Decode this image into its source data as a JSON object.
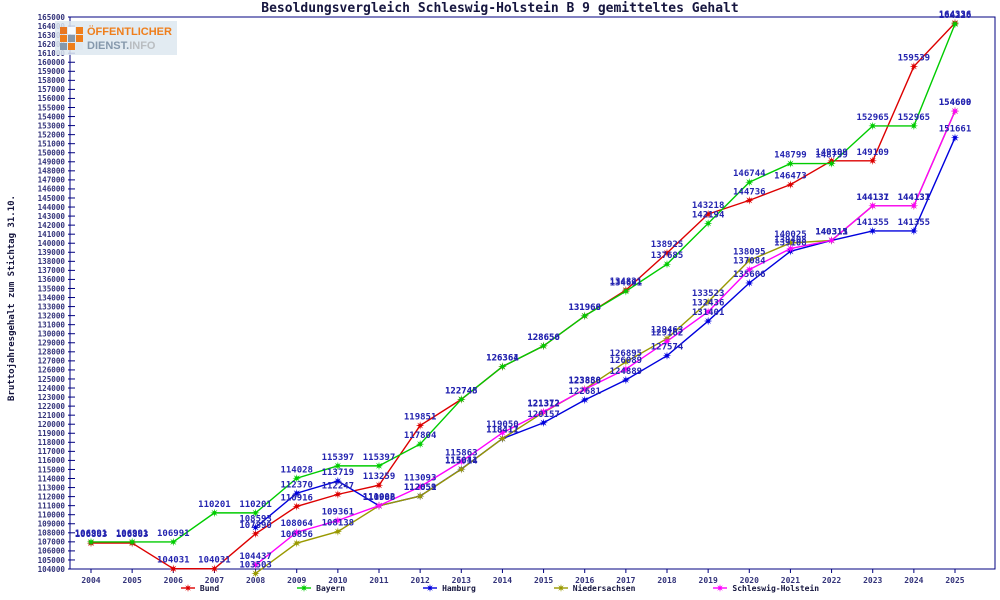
{
  "title": "Besoldungsvergleich Schleswig-Holstein B 9 gemitteltes Gehalt",
  "y_axis_title": "Bruttojahresgehalt zum Stichtag 31.10.",
  "logo": {
    "line1": "ÖFFENTLICHER",
    "line2_a": "DIENST.",
    "line2_b": "INFO"
  },
  "colors": {
    "axis": "#000080",
    "tick_text": "#33337a",
    "point_label_text": "#2525b0",
    "title_text": "#16163f"
  },
  "chart_data": {
    "type": "line",
    "x": [
      2004,
      2005,
      2006,
      2007,
      2008,
      2009,
      2010,
      2011,
      2012,
      2013,
      2014,
      2015,
      2016,
      2017,
      2018,
      2019,
      2020,
      2021,
      2022,
      2023,
      2024,
      2025
    ],
    "ylim": [
      104000,
      165000
    ],
    "ytick_step": 1000,
    "grid": false,
    "legend_position": "bottom",
    "title": "Besoldungsvergleich Schleswig-Holstein B 9 gemitteltes Gehalt",
    "xlabel": "",
    "ylabel": "Bruttojahresgehalt zum Stichtag 31.10.",
    "point_labels": true,
    "series": [
      {
        "name": "Bund",
        "color": "#dd0000",
        "values": [
          106863,
          106863,
          104031,
          104031,
          107890,
          110916,
          112247,
          113259,
          119851,
          122745,
          126361,
          128650,
          131966,
          134821,
          138925,
          143218,
          144736,
          146473,
          149109,
          149109,
          159539,
          164336
        ]
      },
      {
        "name": "Bayern",
        "color": "#00cc00",
        "values": [
          106991,
          106991,
          106991,
          110201,
          110201,
          114028,
          115397,
          115397,
          117804,
          122748,
          126364,
          128656,
          131968,
          134691,
          137685,
          142194,
          146744,
          148799,
          148799,
          152965,
          152965,
          164226
        ]
      },
      {
        "name": "Hamburg",
        "color": "#0000dd",
        "values": [
          null,
          null,
          null,
          null,
          108593,
          112370,
          113719,
          110988,
          112059,
          115041,
          118411,
          120157,
          122681,
          124889,
          127574,
          131401,
          135606,
          139108,
          140311,
          141355,
          141355,
          151661
        ]
      },
      {
        "name": "Niedersachsen",
        "color": "#999900",
        "values": [
          null,
          null,
          null,
          null,
          103503,
          106856,
          108138,
          110986,
          112051,
          115014,
          118417,
          121312,
          123880,
          126895,
          129463,
          133523,
          138095,
          140025,
          140313,
          144131,
          144131,
          154600
        ]
      },
      {
        "name": "Schleswig-Holstein",
        "color": "#ff00ff",
        "values": [
          null,
          null,
          null,
          null,
          104437,
          108064,
          109361,
          111002,
          113093,
          115863,
          119050,
          121372,
          123856,
          126089,
          129162,
          132436,
          137084,
          139408,
          140315,
          144137,
          144137,
          154609
        ]
      }
    ]
  }
}
